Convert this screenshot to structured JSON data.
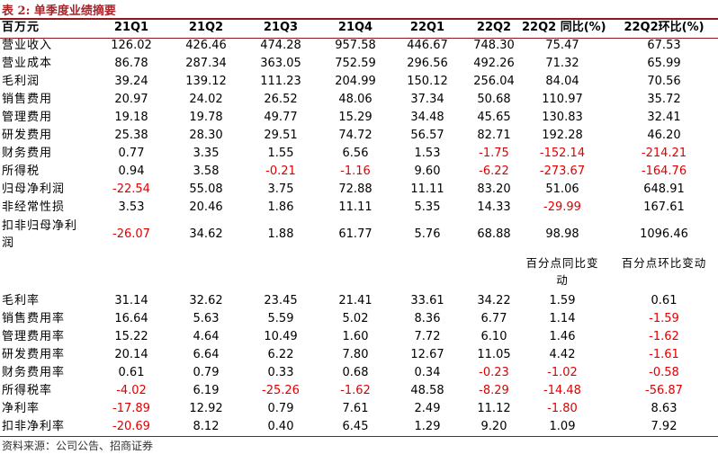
{
  "title": "表 2:  单季度业绩摘要",
  "columns": [
    "百万元",
    "21Q1",
    "21Q2",
    "21Q3",
    "21Q4",
    "22Q1",
    "22Q2",
    "22Q2 同比(%)",
    "22Q2环比(%)"
  ],
  "rows": [
    {
      "label": "营业收入",
      "values": [
        "126.02",
        "426.46",
        "474.28",
        "957.58",
        "446.67",
        "748.30",
        "75.47",
        "67.53"
      ]
    },
    {
      "label": "营业成本",
      "values": [
        "86.78",
        "287.34",
        "363.05",
        "752.59",
        "296.56",
        "492.26",
        "71.32",
        "65.99"
      ]
    },
    {
      "label": "毛利润",
      "values": [
        "39.24",
        "139.12",
        "111.23",
        "204.99",
        "150.12",
        "256.04",
        "84.04",
        "70.56"
      ]
    },
    {
      "label": "销售费用",
      "values": [
        "20.97",
        "24.02",
        "26.52",
        "48.06",
        "37.34",
        "50.68",
        "110.97",
        "35.72"
      ]
    },
    {
      "label": "管理费用",
      "values": [
        "19.18",
        "19.78",
        "49.77",
        "15.29",
        "34.48",
        "45.65",
        "130.83",
        "32.41"
      ]
    },
    {
      "label": "研发费用",
      "values": [
        "25.38",
        "28.30",
        "29.51",
        "74.72",
        "56.57",
        "82.71",
        "192.28",
        "46.20"
      ]
    },
    {
      "label": "财务费用",
      "values": [
        "0.77",
        "3.35",
        "1.55",
        "6.56",
        "1.53",
        "-1.75",
        "-152.14",
        "-214.21"
      ]
    },
    {
      "label": "所得税",
      "values": [
        "0.94",
        "3.58",
        "-0.21",
        "-1.16",
        "9.60",
        "-6.22",
        "-273.67",
        "-164.76"
      ]
    },
    {
      "label": "归母净利润",
      "values": [
        "-22.54",
        "55.08",
        "3.75",
        "72.88",
        "11.11",
        "83.20",
        "51.06",
        "648.91"
      ]
    },
    {
      "label": "非经常性损",
      "values": [
        "3.53",
        "20.46",
        "1.86",
        "11.11",
        "5.35",
        "14.33",
        "-29.99",
        "167.61"
      ]
    },
    {
      "label": "扣非归母净利润",
      "values": [
        "-26.07",
        "34.62",
        "1.88",
        "61.77",
        "5.76",
        "68.88",
        "98.98",
        "1096.46"
      ]
    }
  ],
  "sub_header": [
    "百分点同比变动",
    "百分点环比变动"
  ],
  "rows2": [
    {
      "label": "毛利率",
      "values": [
        "31.14",
        "32.62",
        "23.45",
        "21.41",
        "33.61",
        "34.22",
        "1.59",
        "0.61"
      ]
    },
    {
      "label": "销售费用率",
      "values": [
        "16.64",
        "5.63",
        "5.59",
        "5.02",
        "8.36",
        "6.77",
        "1.14",
        "-1.59"
      ]
    },
    {
      "label": "管理费用率",
      "values": [
        "15.22",
        "4.64",
        "10.49",
        "1.60",
        "7.72",
        "6.10",
        "1.46",
        "-1.62"
      ]
    },
    {
      "label": "研发费用率",
      "values": [
        "20.14",
        "6.64",
        "6.22",
        "7.80",
        "12.67",
        "11.05",
        "4.42",
        "-1.61"
      ]
    },
    {
      "label": "财务费用率",
      "values": [
        "0.61",
        "0.79",
        "0.33",
        "0.68",
        "0.34",
        "-0.23",
        "-1.02",
        "-0.58"
      ]
    },
    {
      "label": "所得税率",
      "values": [
        "-4.02",
        "6.19",
        "-25.26",
        "-1.62",
        "48.58",
        "-8.29",
        "-14.48",
        "-56.87"
      ]
    },
    {
      "label": "净利率",
      "values": [
        "-17.89",
        "12.92",
        "0.79",
        "7.61",
        "2.49",
        "11.12",
        "-1.80",
        "8.63"
      ]
    },
    {
      "label": "扣非净利率",
      "values": [
        "-20.69",
        "8.12",
        "0.40",
        "6.45",
        "1.29",
        "9.20",
        "1.09",
        "7.92"
      ]
    }
  ],
  "source": "资料来源：公司公告、招商证券",
  "colors": {
    "title": "#a8242b",
    "rule": "#8b1a1f",
    "negative": "#e00000"
  }
}
